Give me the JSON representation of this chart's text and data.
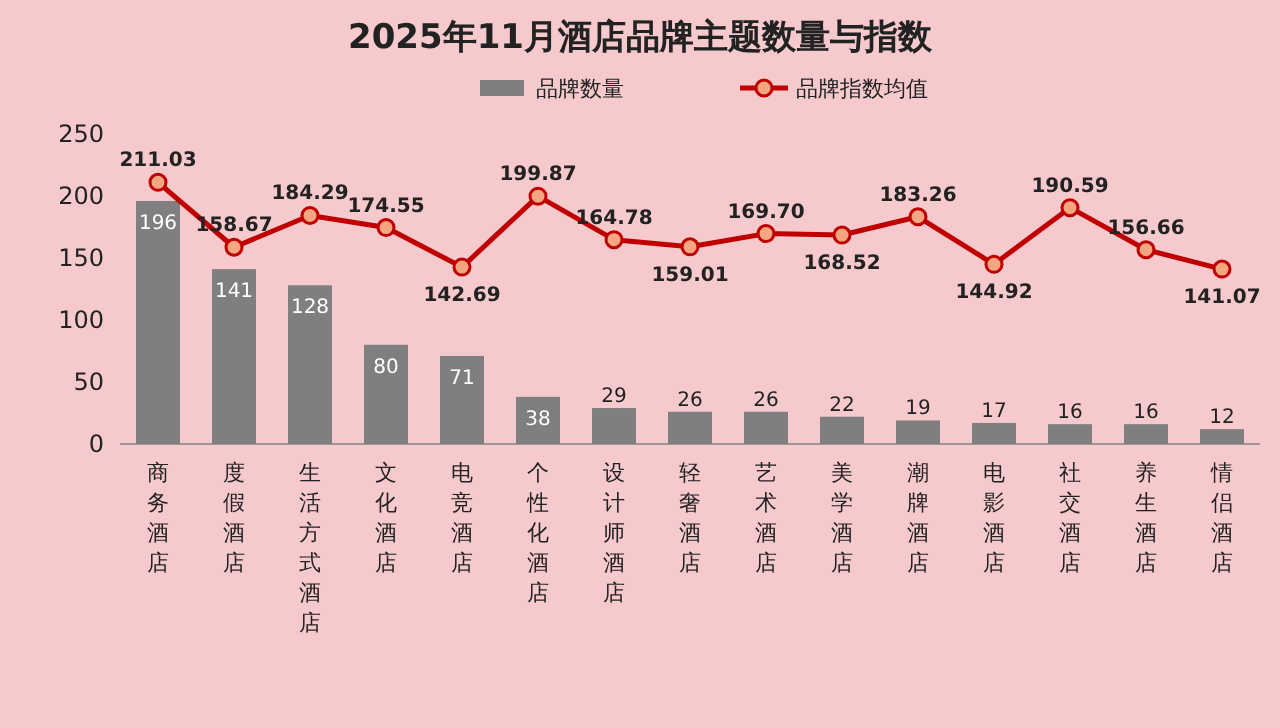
{
  "chart_data": {
    "type": "bar",
    "title": "2025年11月酒店品牌主题数量与指数",
    "categories": [
      "商务酒店",
      "度假酒店",
      "生活方式酒店",
      "文化酒店",
      "电竞酒店",
      "个性化酒店",
      "设计师酒店",
      "轻奢酒店",
      "艺术酒店",
      "美学酒店",
      "潮牌酒店",
      "电影酒店",
      "社交酒店",
      "养生酒店",
      "情侣酒店"
    ],
    "series": [
      {
        "name": "品牌数量",
        "color": "#7f7f7f",
        "values": [
          196,
          141,
          128,
          80,
          71,
          38,
          29,
          26,
          26,
          22,
          19,
          17,
          16,
          16,
          12
        ]
      },
      {
        "name": "品牌指数均值",
        "type": "line",
        "color": "#c00000",
        "values": [
          211.03,
          158.67,
          184.29,
          174.55,
          142.69,
          199.87,
          164.78,
          159.01,
          169.7,
          168.52,
          183.26,
          144.92,
          190.59,
          156.66,
          141.07
        ],
        "value_labels": [
          "211.03",
          "158.67",
          "184.29",
          "174.55",
          "142.69",
          "199.87",
          "164.78",
          "159.01",
          "169.70",
          "168.52",
          "183.26",
          "144.92",
          "190.59",
          "156.66",
          "141.07"
        ]
      }
    ],
    "ylim": [
      0,
      250
    ],
    "yticks": [
      0,
      50,
      100,
      150,
      200,
      250
    ],
    "data_labels": true,
    "legend": "top",
    "marker": "circle",
    "grid": false
  }
}
